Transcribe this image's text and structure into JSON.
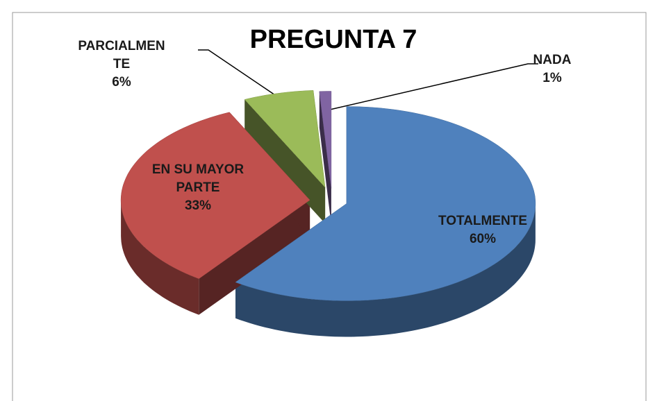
{
  "chart_data": {
    "type": "pie3d",
    "title": "PREGUNTA 7",
    "categories": [
      "TOTALMENTE",
      "EN SU MAYOR PARTE",
      "PARCIALMENTE",
      "NADA"
    ],
    "values": [
      60,
      33,
      6,
      1
    ],
    "value_labels": [
      "60%",
      "33%",
      "6%",
      "1%"
    ],
    "colors": [
      "#4f81bd",
      "#c0504d",
      "#9bbb59",
      "#8064a2"
    ]
  }
}
